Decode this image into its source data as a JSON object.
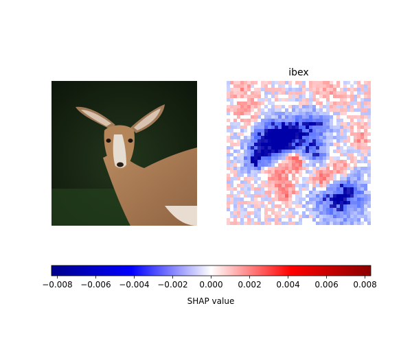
{
  "chart_data": [
    {
      "type": "image",
      "panel": "input-image",
      "title": "",
      "content": "photo of a young antelope (deer-like) with large ears on a dark green background"
    },
    {
      "type": "heatmap",
      "panel": "shap-explanation",
      "title": "ibex",
      "colormap": "diverging blue-white-red",
      "colorbar": {
        "label": "SHAP value",
        "vmin": -0.0083,
        "vmax": 0.0083,
        "ticks": [
          -0.008,
          -0.006,
          -0.004,
          -0.002,
          0.0,
          0.002,
          0.004,
          0.006,
          0.008
        ],
        "tick_labels": [
          "−0.008",
          "−0.006",
          "−0.004",
          "−0.002",
          "0.000",
          "0.002",
          "0.004",
          "0.006",
          "0.008"
        ]
      },
      "colors": {
        "negative": "#00008b",
        "neutral": "#ffffff",
        "positive": "#8b0000"
      }
    }
  ]
}
